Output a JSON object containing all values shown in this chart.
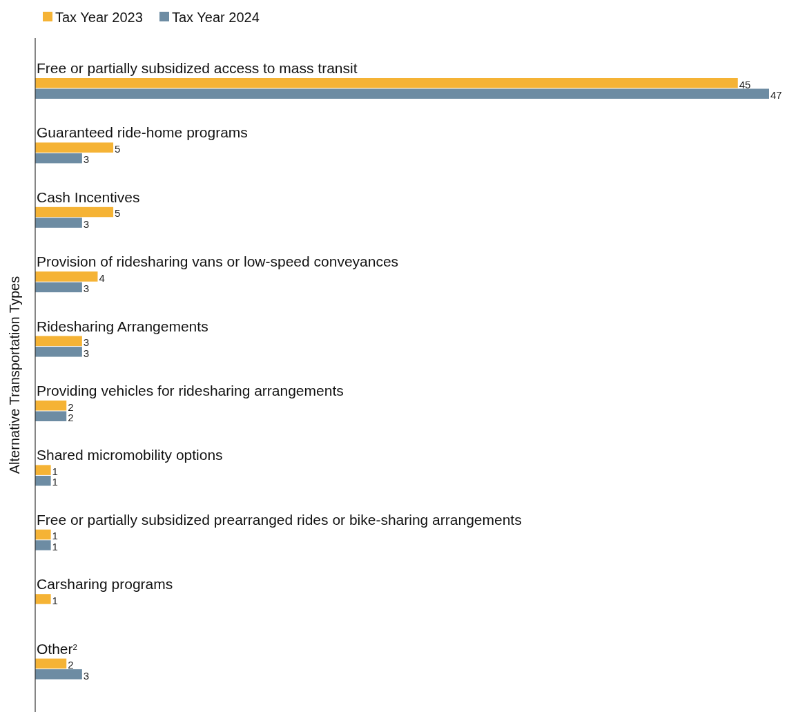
{
  "chart_data": {
    "type": "bar",
    "orientation": "horizontal",
    "ylabel": "Alternative Transportation Types",
    "categories": [
      "Free or partially subsidized access to mass transit",
      "Guaranteed ride-home programs",
      "Cash Incentives",
      "Provision of ridesharing vans or low-speed conveyances",
      "Ridesharing Arrangements",
      "Providing vehicles for ridesharing arrangements",
      "Shared micromobility options",
      "Free or partially subsidized prearranged rides or bike-sharing arrangements",
      "Carsharing programs",
      "Other$^{2}$"
    ],
    "series": [
      {
        "name": "Tax Year 2023",
        "color": "#f5b335",
        "values": [
          45,
          5,
          5,
          4,
          3,
          2,
          1,
          1,
          1,
          2
        ]
      },
      {
        "name": "Tax Year 2024",
        "color": "#6d8ca3",
        "values": [
          47,
          3,
          3,
          3,
          3,
          2,
          1,
          1,
          null,
          3
        ]
      }
    ],
    "data_labels": true,
    "legend": "top left",
    "grid": false
  }
}
